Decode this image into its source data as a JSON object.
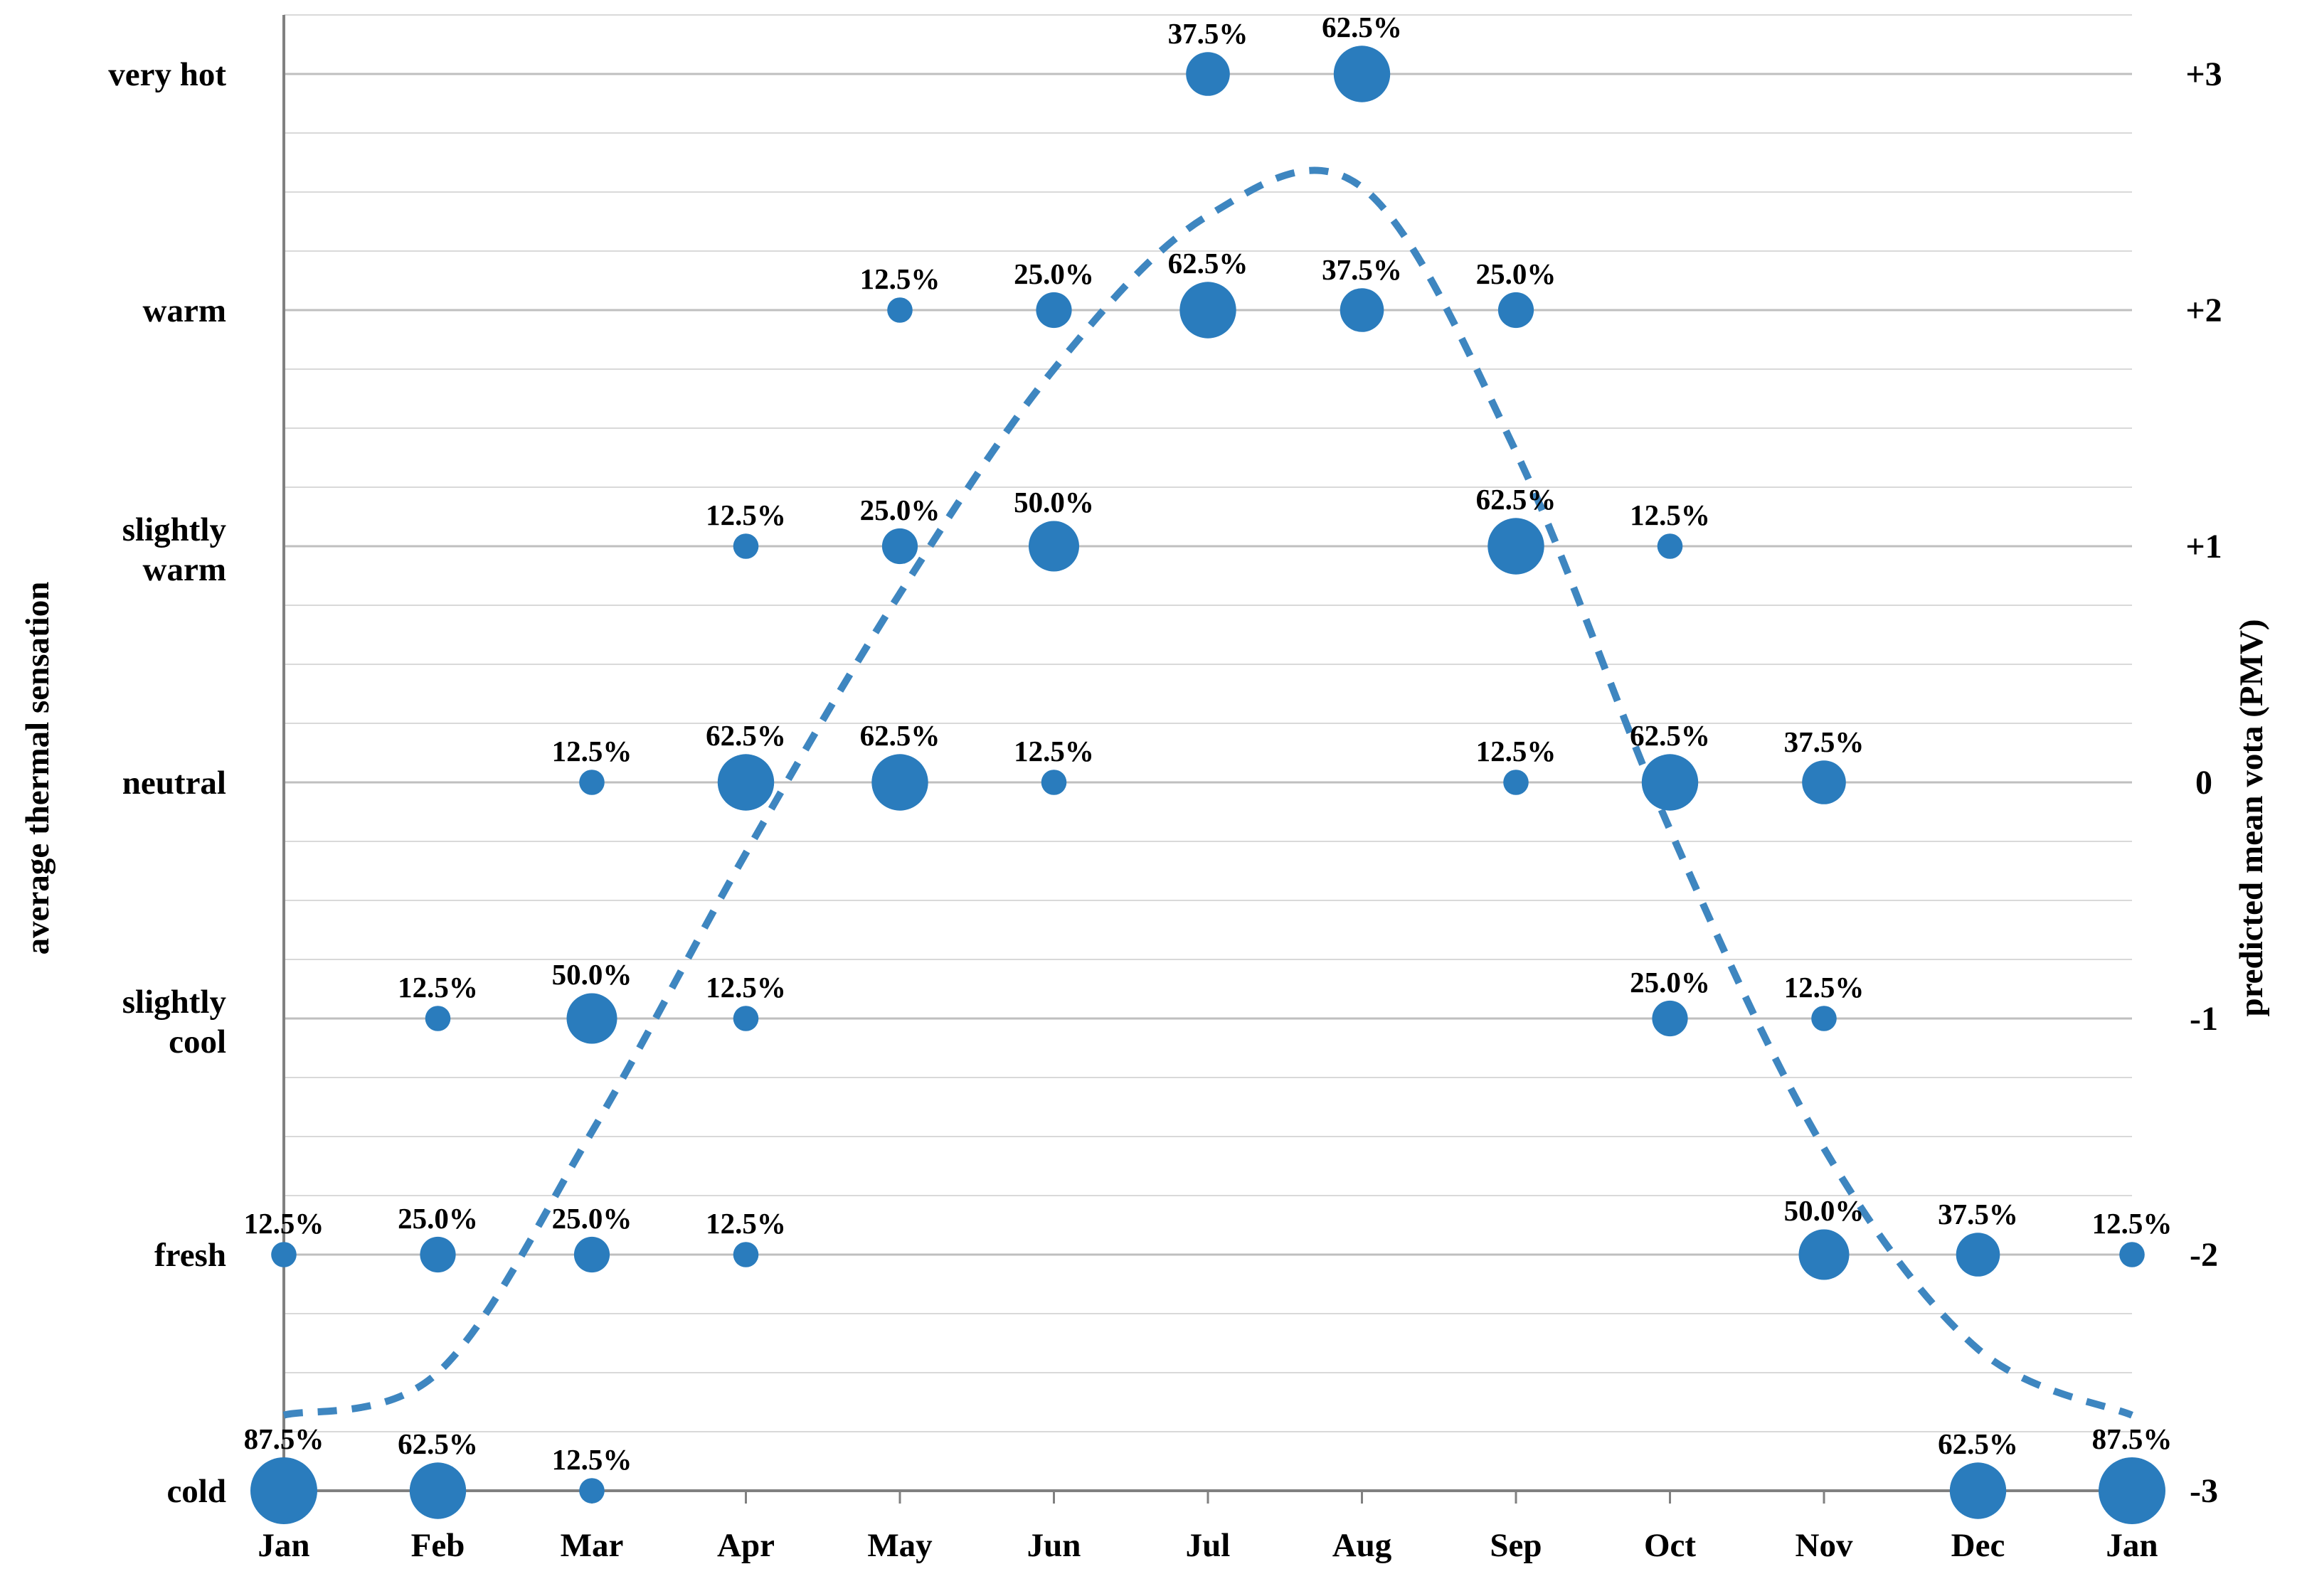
{
  "chart_data": {
    "type": "scatter",
    "subtype": "bubble",
    "title": "",
    "x_categories": [
      "Jan",
      "Feb",
      "Mar",
      "Apr",
      "May",
      "Jun",
      "Jul",
      "Aug",
      "Sep",
      "Oct",
      "Nov",
      "Dec",
      "Jan"
    ],
    "left_axis": {
      "title": "average thermal sensation",
      "category_lines": [
        {
          "lines": [
            "very hot"
          ],
          "pmv": 3
        },
        {
          "lines": [
            "warm"
          ],
          "pmv": 2
        },
        {
          "lines": [
            "slightly",
            "warm"
          ],
          "pmv": 1
        },
        {
          "lines": [
            "neutral"
          ],
          "pmv": 0
        },
        {
          "lines": [
            "slightly",
            "cool"
          ],
          "pmv": -1
        },
        {
          "lines": [
            "fresh"
          ],
          "pmv": -2
        },
        {
          "lines": [
            "cold"
          ],
          "pmv": -3
        }
      ]
    },
    "right_axis": {
      "title": "predicted mean vota (PMV)",
      "ticks": [
        {
          "label": "+3",
          "pmv": 3
        },
        {
          "label": "+2",
          "pmv": 2
        },
        {
          "label": "+1",
          "pmv": 1
        },
        {
          "label": "0",
          "pmv": 0
        },
        {
          "label": "-1",
          "pmv": -1
        },
        {
          "label": "-2",
          "pmv": -2
        },
        {
          "label": "-3",
          "pmv": -3
        }
      ]
    },
    "y_range_pmv": [
      -3,
      3
    ],
    "grid": "on",
    "minor_gridlines_per_unit": 4,
    "bubbles": [
      {
        "month": "Jul",
        "x_index": 6,
        "sensation": "very hot",
        "pmv": 3,
        "percent": 37.5,
        "label": "37.5%"
      },
      {
        "month": "Aug",
        "x_index": 7,
        "sensation": "very hot",
        "pmv": 3,
        "percent": 62.5,
        "label": "62.5%"
      },
      {
        "month": "May",
        "x_index": 4,
        "sensation": "warm",
        "pmv": 2,
        "percent": 12.5,
        "label": "12.5%"
      },
      {
        "month": "Jun",
        "x_index": 5,
        "sensation": "warm",
        "pmv": 2,
        "percent": 25.0,
        "label": "25.0%"
      },
      {
        "month": "Jul",
        "x_index": 6,
        "sensation": "warm",
        "pmv": 2,
        "percent": 62.5,
        "label": "62.5%"
      },
      {
        "month": "Aug",
        "x_index": 7,
        "sensation": "warm",
        "pmv": 2,
        "percent": 37.5,
        "label": "37.5%"
      },
      {
        "month": "Sep",
        "x_index": 8,
        "sensation": "warm",
        "pmv": 2,
        "percent": 25.0,
        "label": "25.0%"
      },
      {
        "month": "Apr",
        "x_index": 3,
        "sensation": "slightly warm",
        "pmv": 1,
        "percent": 12.5,
        "label": "12.5%"
      },
      {
        "month": "May",
        "x_index": 4,
        "sensation": "slightly warm",
        "pmv": 1,
        "percent": 25.0,
        "label": "25.0%"
      },
      {
        "month": "Jun",
        "x_index": 5,
        "sensation": "slightly warm",
        "pmv": 1,
        "percent": 50.0,
        "label": "50.0%"
      },
      {
        "month": "Sep",
        "x_index": 8,
        "sensation": "slightly warm",
        "pmv": 1,
        "percent": 62.5,
        "label": "62.5%"
      },
      {
        "month": "Oct",
        "x_index": 9,
        "sensation": "slightly warm",
        "pmv": 1,
        "percent": 12.5,
        "label": "12.5%"
      },
      {
        "month": "Mar",
        "x_index": 2,
        "sensation": "neutral",
        "pmv": 0,
        "percent": 12.5,
        "label": "12.5%"
      },
      {
        "month": "Apr",
        "x_index": 3,
        "sensation": "neutral",
        "pmv": 0,
        "percent": 62.5,
        "label": "62.5%"
      },
      {
        "month": "May",
        "x_index": 4,
        "sensation": "neutral",
        "pmv": 0,
        "percent": 62.5,
        "label": "62.5%"
      },
      {
        "month": "Jun",
        "x_index": 5,
        "sensation": "neutral",
        "pmv": 0,
        "percent": 12.5,
        "label": "12.5%"
      },
      {
        "month": "Sep",
        "x_index": 8,
        "sensation": "neutral",
        "pmv": 0,
        "percent": 12.5,
        "label": "12.5%"
      },
      {
        "month": "Oct",
        "x_index": 9,
        "sensation": "neutral",
        "pmv": 0,
        "percent": 62.5,
        "label": "62.5%"
      },
      {
        "month": "Nov",
        "x_index": 10,
        "sensation": "neutral",
        "pmv": 0,
        "percent": 37.5,
        "label": "37.5%"
      },
      {
        "month": "Feb",
        "x_index": 1,
        "sensation": "slightly cool",
        "pmv": -1,
        "percent": 12.5,
        "label": "12.5%"
      },
      {
        "month": "Mar",
        "x_index": 2,
        "sensation": "slightly cool",
        "pmv": -1,
        "percent": 50.0,
        "label": "50.0%"
      },
      {
        "month": "Apr",
        "x_index": 3,
        "sensation": "slightly cool",
        "pmv": -1,
        "percent": 12.5,
        "label": "12.5%"
      },
      {
        "month": "Oct",
        "x_index": 9,
        "sensation": "slightly cool",
        "pmv": -1,
        "percent": 25.0,
        "label": "25.0%"
      },
      {
        "month": "Nov",
        "x_index": 10,
        "sensation": "slightly cool",
        "pmv": -1,
        "percent": 12.5,
        "label": "12.5%"
      },
      {
        "month": "Jan",
        "x_index": 0,
        "sensation": "fresh",
        "pmv": -2,
        "percent": 12.5,
        "label": "12.5%"
      },
      {
        "month": "Feb",
        "x_index": 1,
        "sensation": "fresh",
        "pmv": -2,
        "percent": 25.0,
        "label": "25.0%"
      },
      {
        "month": "Mar",
        "x_index": 2,
        "sensation": "fresh",
        "pmv": -2,
        "percent": 25.0,
        "label": "25.0%"
      },
      {
        "month": "Apr",
        "x_index": 3,
        "sensation": "fresh",
        "pmv": -2,
        "percent": 12.5,
        "label": "12.5%"
      },
      {
        "month": "Nov",
        "x_index": 10,
        "sensation": "fresh",
        "pmv": -2,
        "percent": 50.0,
        "label": "50.0%"
      },
      {
        "month": "Dec",
        "x_index": 11,
        "sensation": "fresh",
        "pmv": -2,
        "percent": 37.5,
        "label": "37.5%"
      },
      {
        "month": "Jan",
        "x_index": 12,
        "sensation": "fresh",
        "pmv": -2,
        "percent": 12.5,
        "label": "12.5%"
      },
      {
        "month": "Jan",
        "x_index": 0,
        "sensation": "cold",
        "pmv": -3,
        "percent": 87.5,
        "label": "87.5%"
      },
      {
        "month": "Feb",
        "x_index": 1,
        "sensation": "cold",
        "pmv": -3,
        "percent": 62.5,
        "label": "62.5%"
      },
      {
        "month": "Mar",
        "x_index": 2,
        "sensation": "cold",
        "pmv": -3,
        "percent": 12.5,
        "label": "12.5%"
      },
      {
        "month": "Dec",
        "x_index": 11,
        "sensation": "cold",
        "pmv": -3,
        "percent": 62.5,
        "label": "62.5%"
      },
      {
        "month": "Jan",
        "x_index": 12,
        "sensation": "cold",
        "pmv": -3,
        "percent": 87.5,
        "label": "87.5%"
      }
    ],
    "pmv_curve": {
      "style": "dashed",
      "x_indices": [
        0,
        1,
        2,
        3,
        4,
        5,
        6,
        7,
        8,
        9,
        10,
        11,
        12
      ],
      "values": [
        -2.68,
        -2.5,
        -1.48,
        -0.3,
        0.8,
        1.75,
        2.4,
        2.52,
        1.4,
        -0.2,
        -1.55,
        -2.4,
        -2.68
      ]
    },
    "colors": {
      "bubble": "#2A7CBD",
      "curve": "#3E86C0",
      "grid_minor": "#D9D9D9",
      "grid_major": "#BFBFBF",
      "axis": "#808080",
      "text": "#000000",
      "background": "#FFFFFF"
    }
  }
}
